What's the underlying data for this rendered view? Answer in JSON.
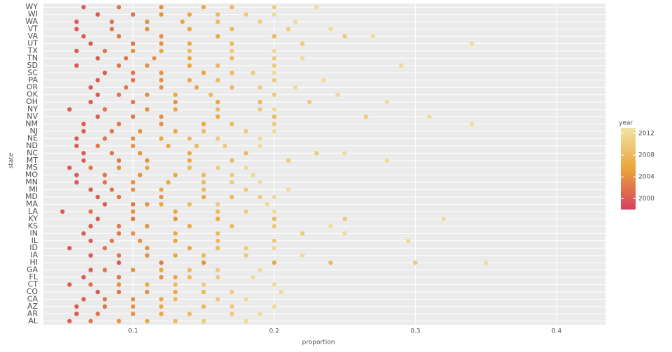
{
  "chart_data": {
    "type": "scatter",
    "x_label": "proportion",
    "y_label": "state",
    "xlim": [
      0.0365,
      0.4347
    ],
    "xticks": [
      0.1,
      0.2,
      0.3,
      0.4
    ],
    "grid": true,
    "years": [
      2000,
      2002,
      2004,
      2006,
      2008,
      2010,
      2012
    ],
    "legend": {
      "title": "year",
      "ticks": [
        2000,
        2004,
        2008,
        2012
      ],
      "limits": [
        1998,
        2013
      ],
      "colors": [
        "#d6405e",
        "#eba43a",
        "#f0e4a6"
      ]
    },
    "series": [
      {
        "name": "AL",
        "values": [
          0.055,
          0.07,
          0.09,
          0.11,
          0.13,
          0.15,
          0.18
        ]
      },
      {
        "name": "AR",
        "values": [
          0.06,
          0.075,
          0.1,
          0.12,
          0.14,
          0.17,
          0.19
        ]
      },
      {
        "name": "AZ",
        "values": [
          0.06,
          0.08,
          0.1,
          0.12,
          0.15,
          0.17,
          0.2
        ]
      },
      {
        "name": "CA",
        "values": [
          0.065,
          0.08,
          0.1,
          0.12,
          0.13,
          0.16,
          0.18
        ]
      },
      {
        "name": "CO",
        "values": [
          0.075,
          0.09,
          0.11,
          0.13,
          0.15,
          0.17,
          0.205
        ]
      },
      {
        "name": "CT",
        "values": [
          0.055,
          0.07,
          0.09,
          0.11,
          0.13,
          0.15,
          0.2
        ]
      },
      {
        "name": "FL",
        "values": [
          0.065,
          0.09,
          0.12,
          0.13,
          0.14,
          0.16,
          0.185
        ]
      },
      {
        "name": "GA",
        "values": [
          0.07,
          0.08,
          0.1,
          0.12,
          0.14,
          0.16,
          0.19
        ]
      },
      {
        "name": "HI",
        "values": [
          0.09,
          0.12,
          0.15,
          0.2,
          0.24,
          0.3,
          0.35
        ]
      },
      {
        "name": "IA",
        "values": [
          0.07,
          0.09,
          0.11,
          0.13,
          0.15,
          0.18,
          0.22
        ]
      },
      {
        "name": "ID",
        "values": [
          0.055,
          0.08,
          0.11,
          0.14,
          0.16,
          0.18,
          0.2
        ]
      },
      {
        "name": "IL",
        "values": [
          0.07,
          0.085,
          0.105,
          0.13,
          0.16,
          0.2,
          0.295
        ]
      },
      {
        "name": "IN",
        "values": [
          0.065,
          0.09,
          0.1,
          0.13,
          0.16,
          0.22,
          0.25
        ]
      },
      {
        "name": "KS",
        "values": [
          0.07,
          0.09,
          0.11,
          0.14,
          0.17,
          0.2,
          0.24
        ]
      },
      {
        "name": "KY",
        "values": [
          0.075,
          0.1,
          0.13,
          0.16,
          0.2,
          0.25,
          0.32
        ]
      },
      {
        "name": "LA",
        "values": [
          0.05,
          0.07,
          0.1,
          0.13,
          0.16,
          0.18,
          0.2
        ]
      },
      {
        "name": "MA",
        "values": [
          0.08,
          0.1,
          0.11,
          0.12,
          0.14,
          0.16,
          0.195
        ]
      },
      {
        "name": "MD",
        "values": [
          0.075,
          0.09,
          0.12,
          0.15,
          0.17,
          0.19,
          0.2
        ]
      },
      {
        "name": "MI",
        "values": [
          0.07,
          0.085,
          0.1,
          0.12,
          0.15,
          0.18,
          0.21
        ]
      },
      {
        "name": "MN",
        "values": [
          0.06,
          0.08,
          0.1,
          0.125,
          0.15,
          0.17,
          0.19
        ]
      },
      {
        "name": "MO",
        "values": [
          0.06,
          0.08,
          0.105,
          0.13,
          0.15,
          0.17,
          0.185
        ]
      },
      {
        "name": "MS",
        "values": [
          0.055,
          0.07,
          0.09,
          0.11,
          0.14,
          0.16,
          0.18
        ]
      },
      {
        "name": "MT",
        "values": [
          0.065,
          0.09,
          0.11,
          0.14,
          0.17,
          0.21,
          0.28
        ]
      },
      {
        "name": "NC",
        "values": [
          0.065,
          0.085,
          0.105,
          0.14,
          0.18,
          0.23,
          0.25
        ]
      },
      {
        "name": "ND",
        "values": [
          0.06,
          0.075,
          0.1,
          0.125,
          0.145,
          0.165,
          0.19
        ]
      },
      {
        "name": "NE",
        "values": [
          0.06,
          0.08,
          0.1,
          0.12,
          0.14,
          0.16,
          0.19
        ]
      },
      {
        "name": "NJ",
        "values": [
          0.065,
          0.085,
          0.105,
          0.13,
          0.15,
          0.18,
          0.2
        ]
      },
      {
        "name": "NM",
        "values": [
          0.065,
          0.09,
          0.12,
          0.15,
          0.17,
          0.2,
          0.34
        ]
      },
      {
        "name": "NV",
        "values": [
          0.075,
          0.1,
          0.12,
          0.16,
          0.2,
          0.265,
          0.31
        ]
      },
      {
        "name": "NY",
        "values": [
          0.055,
          0.08,
          0.11,
          0.13,
          0.16,
          0.19,
          0.2
        ]
      },
      {
        "name": "OH",
        "values": [
          0.07,
          0.1,
          0.13,
          0.16,
          0.19,
          0.225,
          0.28
        ]
      },
      {
        "name": "OK",
        "values": [
          0.075,
          0.09,
          0.11,
          0.13,
          0.155,
          0.2,
          0.245
        ]
      },
      {
        "name": "OR",
        "values": [
          0.07,
          0.095,
          0.12,
          0.145,
          0.17,
          0.19,
          0.215
        ]
      },
      {
        "name": "PA",
        "values": [
          0.075,
          0.1,
          0.12,
          0.14,
          0.16,
          0.2,
          0.235
        ]
      },
      {
        "name": "SC",
        "values": [
          0.08,
          0.1,
          0.12,
          0.15,
          0.17,
          0.185,
          0.2
        ]
      },
      {
        "name": "SD",
        "values": [
          0.06,
          0.09,
          0.11,
          0.14,
          0.16,
          0.2,
          0.29
        ]
      },
      {
        "name": "TN",
        "values": [
          0.075,
          0.095,
          0.115,
          0.14,
          0.17,
          0.2,
          0.22
        ]
      },
      {
        "name": "TX",
        "values": [
          0.06,
          0.08,
          0.1,
          0.12,
          0.14,
          0.17,
          0.2
        ]
      },
      {
        "name": "UT",
        "values": [
          0.07,
          0.1,
          0.12,
          0.14,
          0.17,
          0.22,
          0.34
        ]
      },
      {
        "name": "VA",
        "values": [
          0.065,
          0.09,
          0.12,
          0.16,
          0.2,
          0.25,
          0.27
        ]
      },
      {
        "name": "VT",
        "values": [
          0.06,
          0.085,
          0.11,
          0.14,
          0.17,
          0.21,
          0.24
        ]
      },
      {
        "name": "WA",
        "values": [
          0.06,
          0.085,
          0.11,
          0.135,
          0.16,
          0.19,
          0.215
        ]
      },
      {
        "name": "WI",
        "values": [
          0.075,
          0.1,
          0.12,
          0.14,
          0.16,
          0.18,
          0.2
        ]
      },
      {
        "name": "WY",
        "values": [
          0.065,
          0.09,
          0.12,
          0.15,
          0.17,
          0.2,
          0.23
        ]
      }
    ]
  }
}
